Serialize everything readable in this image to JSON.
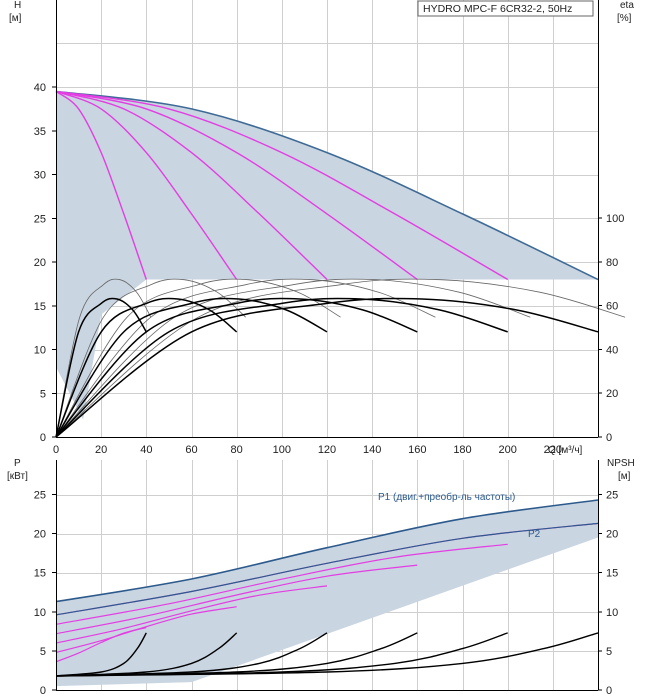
{
  "chart_data": [
    {
      "type": "line",
      "panel": "head-and-efficiency",
      "title": "HYDRO MPC-F 6CR32-2, 50Hz",
      "ylabel": "H",
      "ylabel_unit": "[м]",
      "y2label": "eta",
      "y2label_unit": "[%]",
      "xlabel": "Q [м³/ч]",
      "xlim": [
        0,
        240
      ],
      "ylim": [
        0,
        40
      ],
      "y2lim": [
        0,
        100
      ],
      "x_ticks": [
        0,
        20,
        40,
        60,
        80,
        100,
        120,
        140,
        160,
        180,
        200,
        220
      ],
      "y_ticks": [
        0,
        5,
        10,
        15,
        20,
        25,
        30,
        35,
        40
      ],
      "y2_ticks": [
        0,
        20,
        40,
        60,
        80,
        100
      ],
      "grid": true,
      "colors": {
        "envelope_fill": "#c9d5e1",
        "envelope_line": "#3e6a96",
        "pump_curves": "#e43de4",
        "efficiency": "#000000"
      },
      "series": [
        {
          "pumps": 1,
          "x": [
            0,
            10,
            20,
            30,
            40
          ],
          "values": [
            39.5,
            37.5,
            32.5,
            25.5,
            18.0
          ]
        },
        {
          "pumps": 2,
          "x": [
            0,
            20,
            40,
            60,
            80
          ],
          "values": [
            39.5,
            37.5,
            32.5,
            25.5,
            18.0
          ]
        },
        {
          "pumps": 3,
          "x": [
            0,
            30,
            60,
            90,
            120
          ],
          "values": [
            39.5,
            37.5,
            32.5,
            25.5,
            18.0
          ]
        },
        {
          "pumps": 4,
          "x": [
            0,
            40,
            80,
            120,
            160
          ],
          "values": [
            39.5,
            37.5,
            32.5,
            25.5,
            18.0
          ]
        },
        {
          "pumps": 5,
          "x": [
            0,
            50,
            100,
            150,
            200
          ],
          "values": [
            39.5,
            37.5,
            32.5,
            25.5,
            18.0
          ]
        },
        {
          "pumps": 6,
          "x": [
            0,
            60,
            120,
            180,
            240
          ],
          "values": [
            39.5,
            37.5,
            32.5,
            25.5,
            18.0
          ]
        }
      ],
      "efficiency_series": [
        {
          "pumps": 1,
          "x": [
            0,
            10,
            20,
            27,
            34,
            40
          ],
          "values": [
            0,
            48,
            61,
            63,
            58,
            48
          ]
        },
        {
          "pumps": 2,
          "x": [
            0,
            20,
            40,
            54,
            68,
            80
          ],
          "values": [
            0,
            48,
            61,
            63,
            58,
            48
          ]
        },
        {
          "pumps": 3,
          "x": [
            0,
            30,
            60,
            81,
            102,
            120
          ],
          "values": [
            0,
            48,
            61,
            63,
            58,
            48
          ]
        },
        {
          "pumps": 4,
          "x": [
            0,
            40,
            80,
            108,
            136,
            160
          ],
          "values": [
            0,
            48,
            61,
            63,
            58,
            48
          ]
        },
        {
          "pumps": 5,
          "x": [
            0,
            50,
            100,
            135,
            170,
            200
          ],
          "values": [
            0,
            48,
            61,
            63,
            58,
            48
          ]
        },
        {
          "pumps": 6,
          "x": [
            0,
            60,
            120,
            162,
            204,
            240
          ],
          "values": [
            0,
            48,
            61,
            63,
            58,
            48
          ]
        }
      ]
    },
    {
      "type": "line",
      "panel": "power-and-npsh",
      "ylabel": "P",
      "ylabel_unit": "[кВт]",
      "y2label": "NPSH",
      "y2label_unit": "[м]",
      "xlim": [
        0,
        240
      ],
      "ylim": [
        0,
        28
      ],
      "y2lim": [
        0,
        28
      ],
      "y_ticks": [
        0,
        5,
        10,
        15,
        20,
        25
      ],
      "y2_ticks": [
        0,
        5,
        10,
        15,
        20,
        25
      ],
      "grid": true,
      "series": [
        {
          "name": "P1 (двиг.+преобр-ль частоты)",
          "x": [
            0,
            60,
            120,
            180,
            240
          ],
          "values": [
            11.3,
            14.2,
            18.2,
            21.9,
            24.3
          ]
        },
        {
          "name": "P2",
          "x": [
            0,
            60,
            120,
            180,
            240
          ],
          "values": [
            9.6,
            12.6,
            16.2,
            19.4,
            21.3
          ]
        }
      ],
      "npsh_series": [
        {
          "pumps": 1,
          "x": [
            0,
            20,
            30,
            36,
            40
          ],
          "values": [
            1.8,
            2.3,
            3.4,
            5.3,
            7.3
          ]
        },
        {
          "pumps": 2,
          "x": [
            0,
            40,
            60,
            72,
            80
          ],
          "values": [
            1.8,
            2.3,
            3.4,
            5.3,
            7.3
          ]
        },
        {
          "pumps": 3,
          "x": [
            0,
            60,
            90,
            108,
            120
          ],
          "values": [
            1.8,
            2.3,
            3.4,
            5.3,
            7.3
          ]
        },
        {
          "pumps": 4,
          "x": [
            0,
            80,
            120,
            144,
            160
          ],
          "values": [
            1.8,
            2.3,
            3.4,
            5.3,
            7.3
          ]
        },
        {
          "pumps": 5,
          "x": [
            0,
            100,
            150,
            180,
            200
          ],
          "values": [
            1.8,
            2.3,
            3.4,
            5.3,
            7.3
          ]
        },
        {
          "pumps": 6,
          "x": [
            0,
            120,
            180,
            216,
            240
          ],
          "values": [
            1.8,
            2.3,
            3.4,
            5.3,
            7.3
          ]
        }
      ]
    }
  ]
}
